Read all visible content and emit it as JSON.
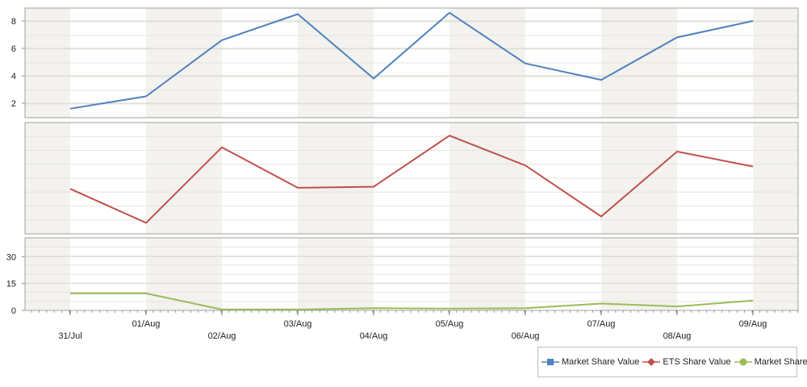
{
  "chart_data": {
    "type": "line",
    "categories": [
      "31/Jul",
      "01/Aug",
      "02/Aug",
      "03/Aug",
      "04/Aug",
      "05/Aug",
      "06/Aug",
      "07/Aug",
      "08/Aug",
      "09/Aug"
    ],
    "panes": [
      {
        "series": "Market Share Value",
        "ylim": [
          1,
          9
        ],
        "yticks": [
          2,
          4,
          6,
          8
        ],
        "show_ticks": true
      },
      {
        "series": "ETS Share Value",
        "ylim": [
          0,
          10
        ],
        "yticks": [],
        "show_ticks": false
      },
      {
        "series": "Market Share",
        "ylim": [
          0,
          40
        ],
        "yticks": [
          0,
          15,
          30
        ],
        "show_ticks": true
      }
    ],
    "series": [
      {
        "name": "Market Share Value",
        "color": "#4f81bd",
        "marker": "square",
        "values": [
          1.6,
          2.5,
          6.6,
          8.5,
          3.8,
          8.6,
          4.9,
          3.7,
          6.8,
          8.0
        ]
      },
      {
        "name": "ETS Share Value",
        "color": "#c0504d",
        "marker": "diamond",
        "values": [
          4.0,
          0.8,
          7.9,
          4.1,
          4.2,
          9.0,
          6.2,
          1.4,
          7.5,
          6.1
        ]
      },
      {
        "name": "Market Share",
        "color": "#9bbb59",
        "marker": "circle",
        "values": [
          9.5,
          9.5,
          0.5,
          0.5,
          1.2,
          1.0,
          1.2,
          3.8,
          2.2,
          5.5
        ]
      }
    ],
    "grid": true,
    "legend": "bottom-right"
  }
}
